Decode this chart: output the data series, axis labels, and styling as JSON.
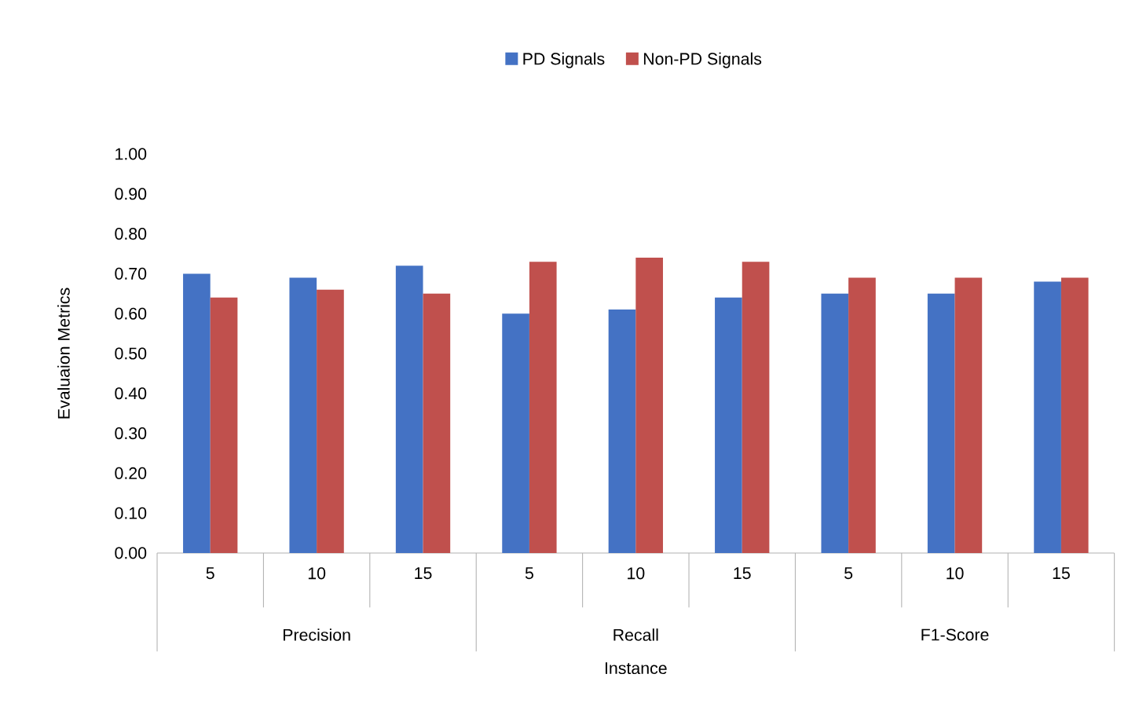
{
  "chart_data": {
    "type": "bar",
    "xlabel": "Instance",
    "ylabel": "Evaluaion Metrics",
    "categories": [
      "5",
      "10",
      "15",
      "5",
      "10",
      "15",
      "5",
      "10",
      "15"
    ],
    "annotations": [
      "Precision",
      "Recall",
      "F1-Score"
    ],
    "series": [
      {
        "name": "PD Signals",
        "color": "#4472c4",
        "values": [
          0.7,
          0.69,
          0.72,
          0.6,
          0.61,
          0.64,
          0.65,
          0.65,
          0.68
        ]
      },
      {
        "name": "Non-PD Signals",
        "color": "#c0504d",
        "values": [
          0.64,
          0.66,
          0.65,
          0.73,
          0.74,
          0.73,
          0.69,
          0.69,
          0.69
        ]
      }
    ],
    "ylim": [
      0,
      1
    ],
    "yticks": [
      {
        "value": 0,
        "label": "0.00"
      },
      {
        "value": 0.1,
        "label": "0.10"
      },
      {
        "value": 0.2,
        "label": "0.20"
      },
      {
        "value": 0.3,
        "label": "0.30"
      },
      {
        "value": 0.4,
        "label": "0.40"
      },
      {
        "value": 0.5,
        "label": "0.50"
      },
      {
        "value": 0.6,
        "label": "0.60"
      },
      {
        "value": 0.7,
        "label": "0.70"
      },
      {
        "value": 0.8,
        "label": "0.80"
      },
      {
        "value": 0.9,
        "label": "0.90"
      },
      {
        "value": 1.0,
        "label": "1.00"
      }
    ],
    "legend": "top"
  }
}
